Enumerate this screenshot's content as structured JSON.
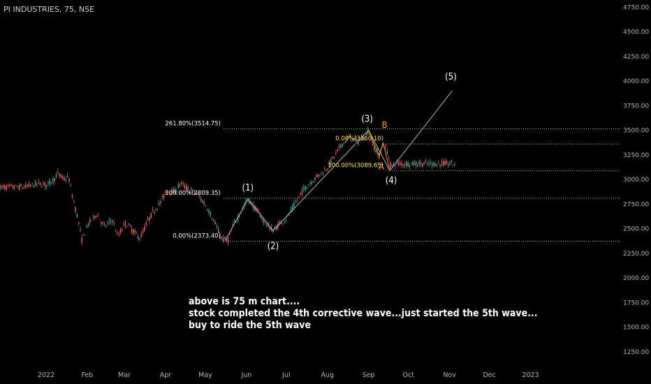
{
  "ticker": "PI INDUSTRIES, 75, NSE",
  "note_lines": [
    "above is 75 m chart....",
    "stock completed the 4th corrective wave...just started the 5th wave...",
    "buy to ride the 5th wave"
  ],
  "chart_data": {
    "type": "candlestick",
    "title": "PI INDUSTRIES, 75, NSE",
    "x_tick_labels": [
      "2022",
      "Feb",
      "Mar",
      "Apr",
      "May",
      "Jun",
      "Jul",
      "Aug",
      "Sep",
      "Oct",
      "Nov",
      "Dec",
      "2023"
    ],
    "y_tick_labels": [
      "4750.00",
      "4500.00",
      "4250.00",
      "4000.00",
      "3750.00",
      "3500.00",
      "3250.00",
      "3000.00",
      "2750.00",
      "2500.00",
      "2250.00",
      "2000.00",
      "1750.00",
      "1500.00",
      "1250.00"
    ],
    "ylim": [
      1100,
      4850
    ],
    "price_path": [
      [
        "2021-12-15",
        2920
      ],
      [
        "2021-12-27",
        2960
      ],
      [
        "2022-01-01",
        2940
      ],
      [
        "2022-01-06",
        2990
      ],
      [
        "2022-01-10",
        3060
      ],
      [
        "2022-01-14",
        3000
      ],
      [
        "2022-01-18",
        3020
      ],
      [
        "2022-01-21",
        2820
      ],
      [
        "2022-01-25",
        2600
      ],
      [
        "2022-01-28",
        2380
      ],
      [
        "2022-02-02",
        2550
      ],
      [
        "2022-02-08",
        2650
      ],
      [
        "2022-02-14",
        2520
      ],
      [
        "2022-02-20",
        2590
      ],
      [
        "2022-02-24",
        2420
      ],
      [
        "2022-03-02",
        2560
      ],
      [
        "2022-03-08",
        2470
      ],
      [
        "2022-03-13",
        2400
      ],
      [
        "2022-03-18",
        2560
      ],
      [
        "2022-03-23",
        2680
      ],
      [
        "2022-03-28",
        2760
      ],
      [
        "2022-04-02",
        2890
      ],
      [
        "2022-04-08",
        2870
      ],
      [
        "2022-04-12",
        2960
      ],
      [
        "2022-04-18",
        2900
      ],
      [
        "2022-04-24",
        2860
      ],
      [
        "2022-04-29",
        2780
      ],
      [
        "2022-05-03",
        2700
      ],
      [
        "2022-05-08",
        2560
      ],
      [
        "2022-05-13",
        2400
      ],
      [
        "2022-05-18",
        2380
      ],
      [
        "2022-05-23",
        2560
      ],
      [
        "2022-05-29",
        2700
      ],
      [
        "2022-06-02",
        2800
      ],
      [
        "2022-06-08",
        2700
      ],
      [
        "2022-06-14",
        2580
      ],
      [
        "2022-06-18",
        2520
      ],
      [
        "2022-06-21",
        2480
      ],
      [
        "2022-06-27",
        2560
      ],
      [
        "2022-07-02",
        2620
      ],
      [
        "2022-07-08",
        2760
      ],
      [
        "2022-07-14",
        2900
      ],
      [
        "2022-07-20",
        2980
      ],
      [
        "2022-07-26",
        3050
      ],
      [
        "2022-08-01",
        3120
      ],
      [
        "2022-08-06",
        3230
      ],
      [
        "2022-08-12",
        3360
      ],
      [
        "2022-08-18",
        3430
      ],
      [
        "2022-08-24",
        3380
      ],
      [
        "2022-08-30",
        3450
      ],
      [
        "2022-09-01",
        3500
      ],
      [
        "2022-09-06",
        3300
      ],
      [
        "2022-09-09",
        3240
      ],
      [
        "2022-09-12",
        3370
      ],
      [
        "2022-09-15",
        3280
      ],
      [
        "2022-09-18",
        3120
      ],
      [
        "2022-09-21",
        3160
      ]
    ],
    "wave_labels": [
      {
        "label": "(1)",
        "date": "2022-06-02",
        "price": 2800
      },
      {
        "label": "(2)",
        "date": "2022-06-21",
        "price": 2480
      },
      {
        "label": "(3)",
        "date": "2022-09-01",
        "price": 3500
      },
      {
        "label": "(4)",
        "date": "2022-09-17",
        "price": 3090
      },
      {
        "label": "(5)",
        "date": "2022-11-03",
        "price": 3900
      }
    ],
    "sub_wave_labels": [
      {
        "label": "A",
        "date": "2022-09-09",
        "price": 3240
      },
      {
        "label": "B",
        "date": "2022-09-12",
        "price": 3370
      }
    ],
    "fib_levels": [
      {
        "label": "261.80%(3514.75)",
        "price": 3514.75
      },
      {
        "label": "100.00%(2809.35)",
        "price": 2809.35
      },
      {
        "label": "0.00%(2373.40)",
        "price": 2373.4
      },
      {
        "label": "0.00%(3360.10)",
        "price": 3360.1
      },
      {
        "label": "100.00%(3089.65)",
        "price": 3089.65
      }
    ],
    "colors": {
      "background": "#000000",
      "candle_up": "#26a69a",
      "candle_down": "#ef5350",
      "wave_line": "#b2b5be",
      "fib_line_white": "#cccccc",
      "fib_line_yellow": "#d4c84a",
      "fib_text_white": "#ffffff",
      "fib_text_yellow": "#ffeb3b",
      "sub_wave": "#ff9800",
      "axis_text": "#b2b5be"
    }
  }
}
